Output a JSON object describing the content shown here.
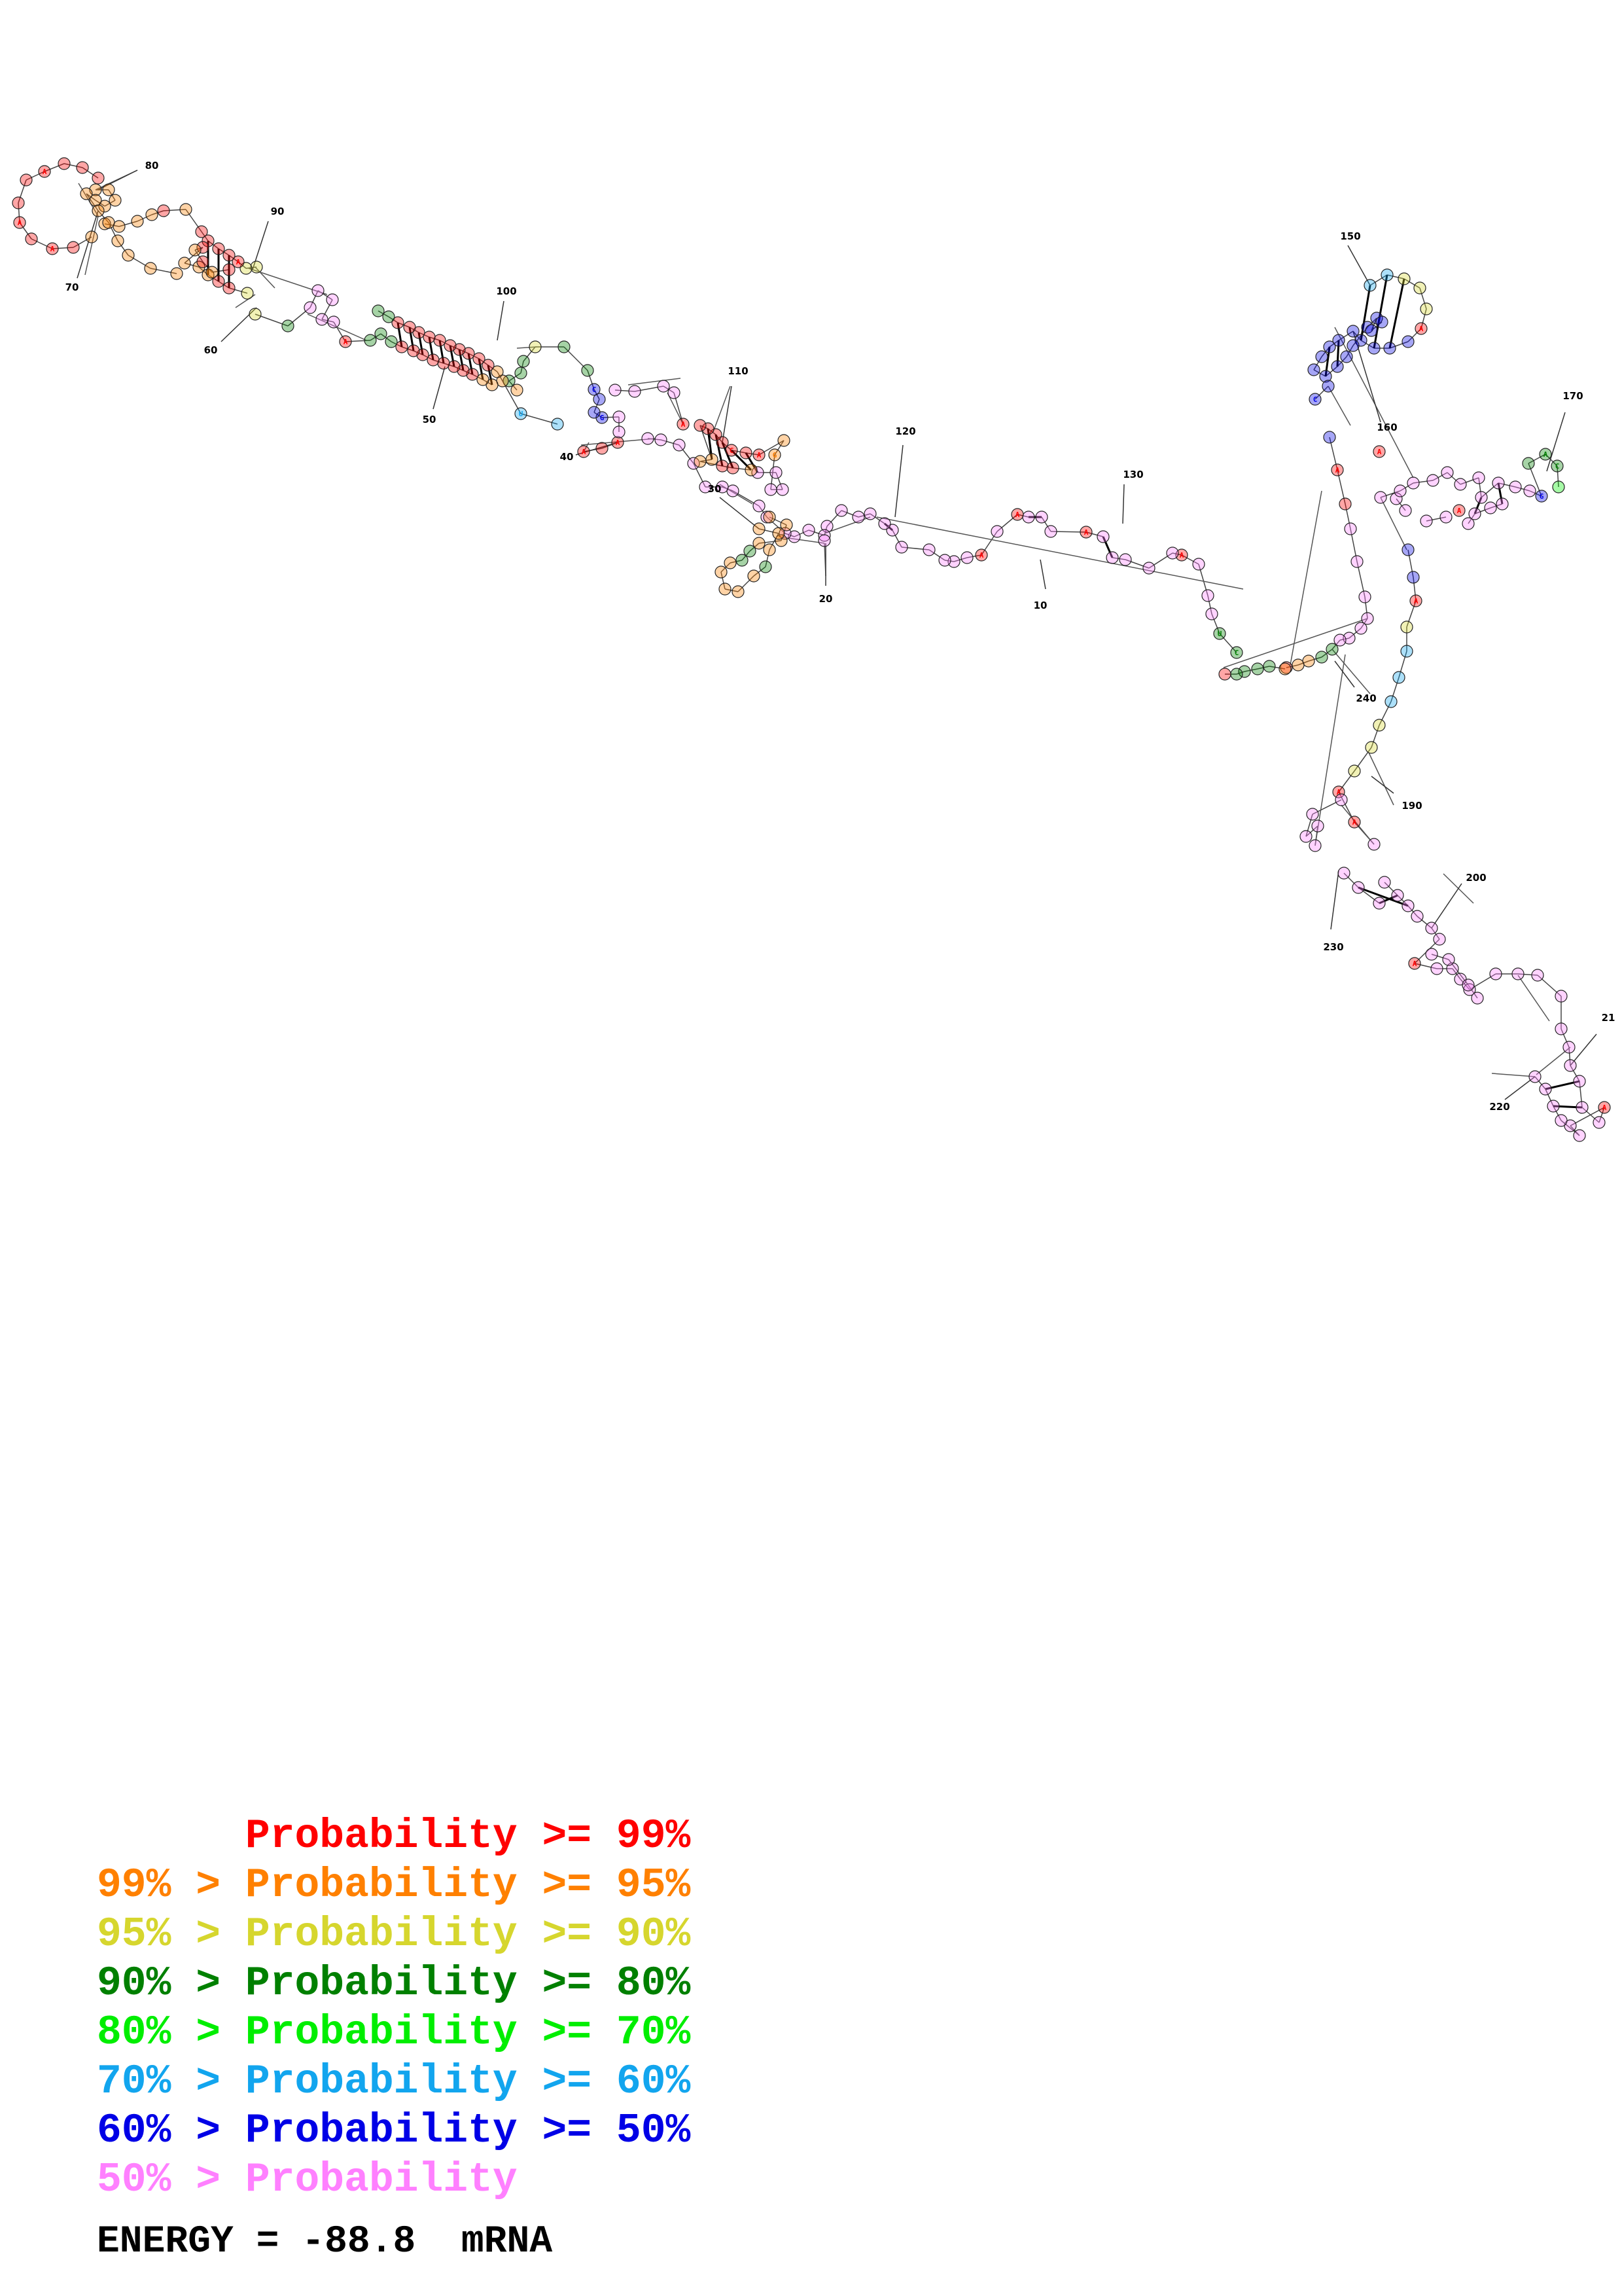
{
  "colors": {
    "p99": "#ff0000",
    "p95": "#ff8000",
    "p90": "#d6d62e",
    "p80": "#008000",
    "p70": "#00ee00",
    "p60": "#12a5ee",
    "p50": "#0000e6",
    "plow": "#ff80ff"
  },
  "legend": [
    {
      "prefix": "",
      "text": "Probability >= 99%",
      "color_key": "p99"
    },
    {
      "prefix": "99% > ",
      "text": "Probability >= 95%",
      "color_key": "p95"
    },
    {
      "prefix": "95% > ",
      "text": "Probability >= 90%",
      "color_key": "p90"
    },
    {
      "prefix": "90% > ",
      "text": "Probability >= 80%",
      "color_key": "p80"
    },
    {
      "prefix": "80% > ",
      "text": "Probability >= 70%",
      "color_key": "p70"
    },
    {
      "prefix": "70% > ",
      "text": "Probability >= 60%",
      "color_key": "p60"
    },
    {
      "prefix": "60% > ",
      "text": "Probability >= 50%",
      "color_key": "p50"
    },
    {
      "prefix": "50% > ",
      "text": "Probability",
      "color_key": "plow"
    }
  ],
  "energy": {
    "label": "ENERGY = ",
    "value": "-88.8",
    "molecule": "mRNA"
  },
  "position_labels": [
    "10",
    "20",
    "30",
    "40",
    "50",
    "60",
    "70",
    "80",
    "90",
    "100",
    "110",
    "120",
    "130",
    "150",
    "160",
    "170",
    "190",
    "200",
    "21",
    "220",
    "230",
    "240"
  ]
}
